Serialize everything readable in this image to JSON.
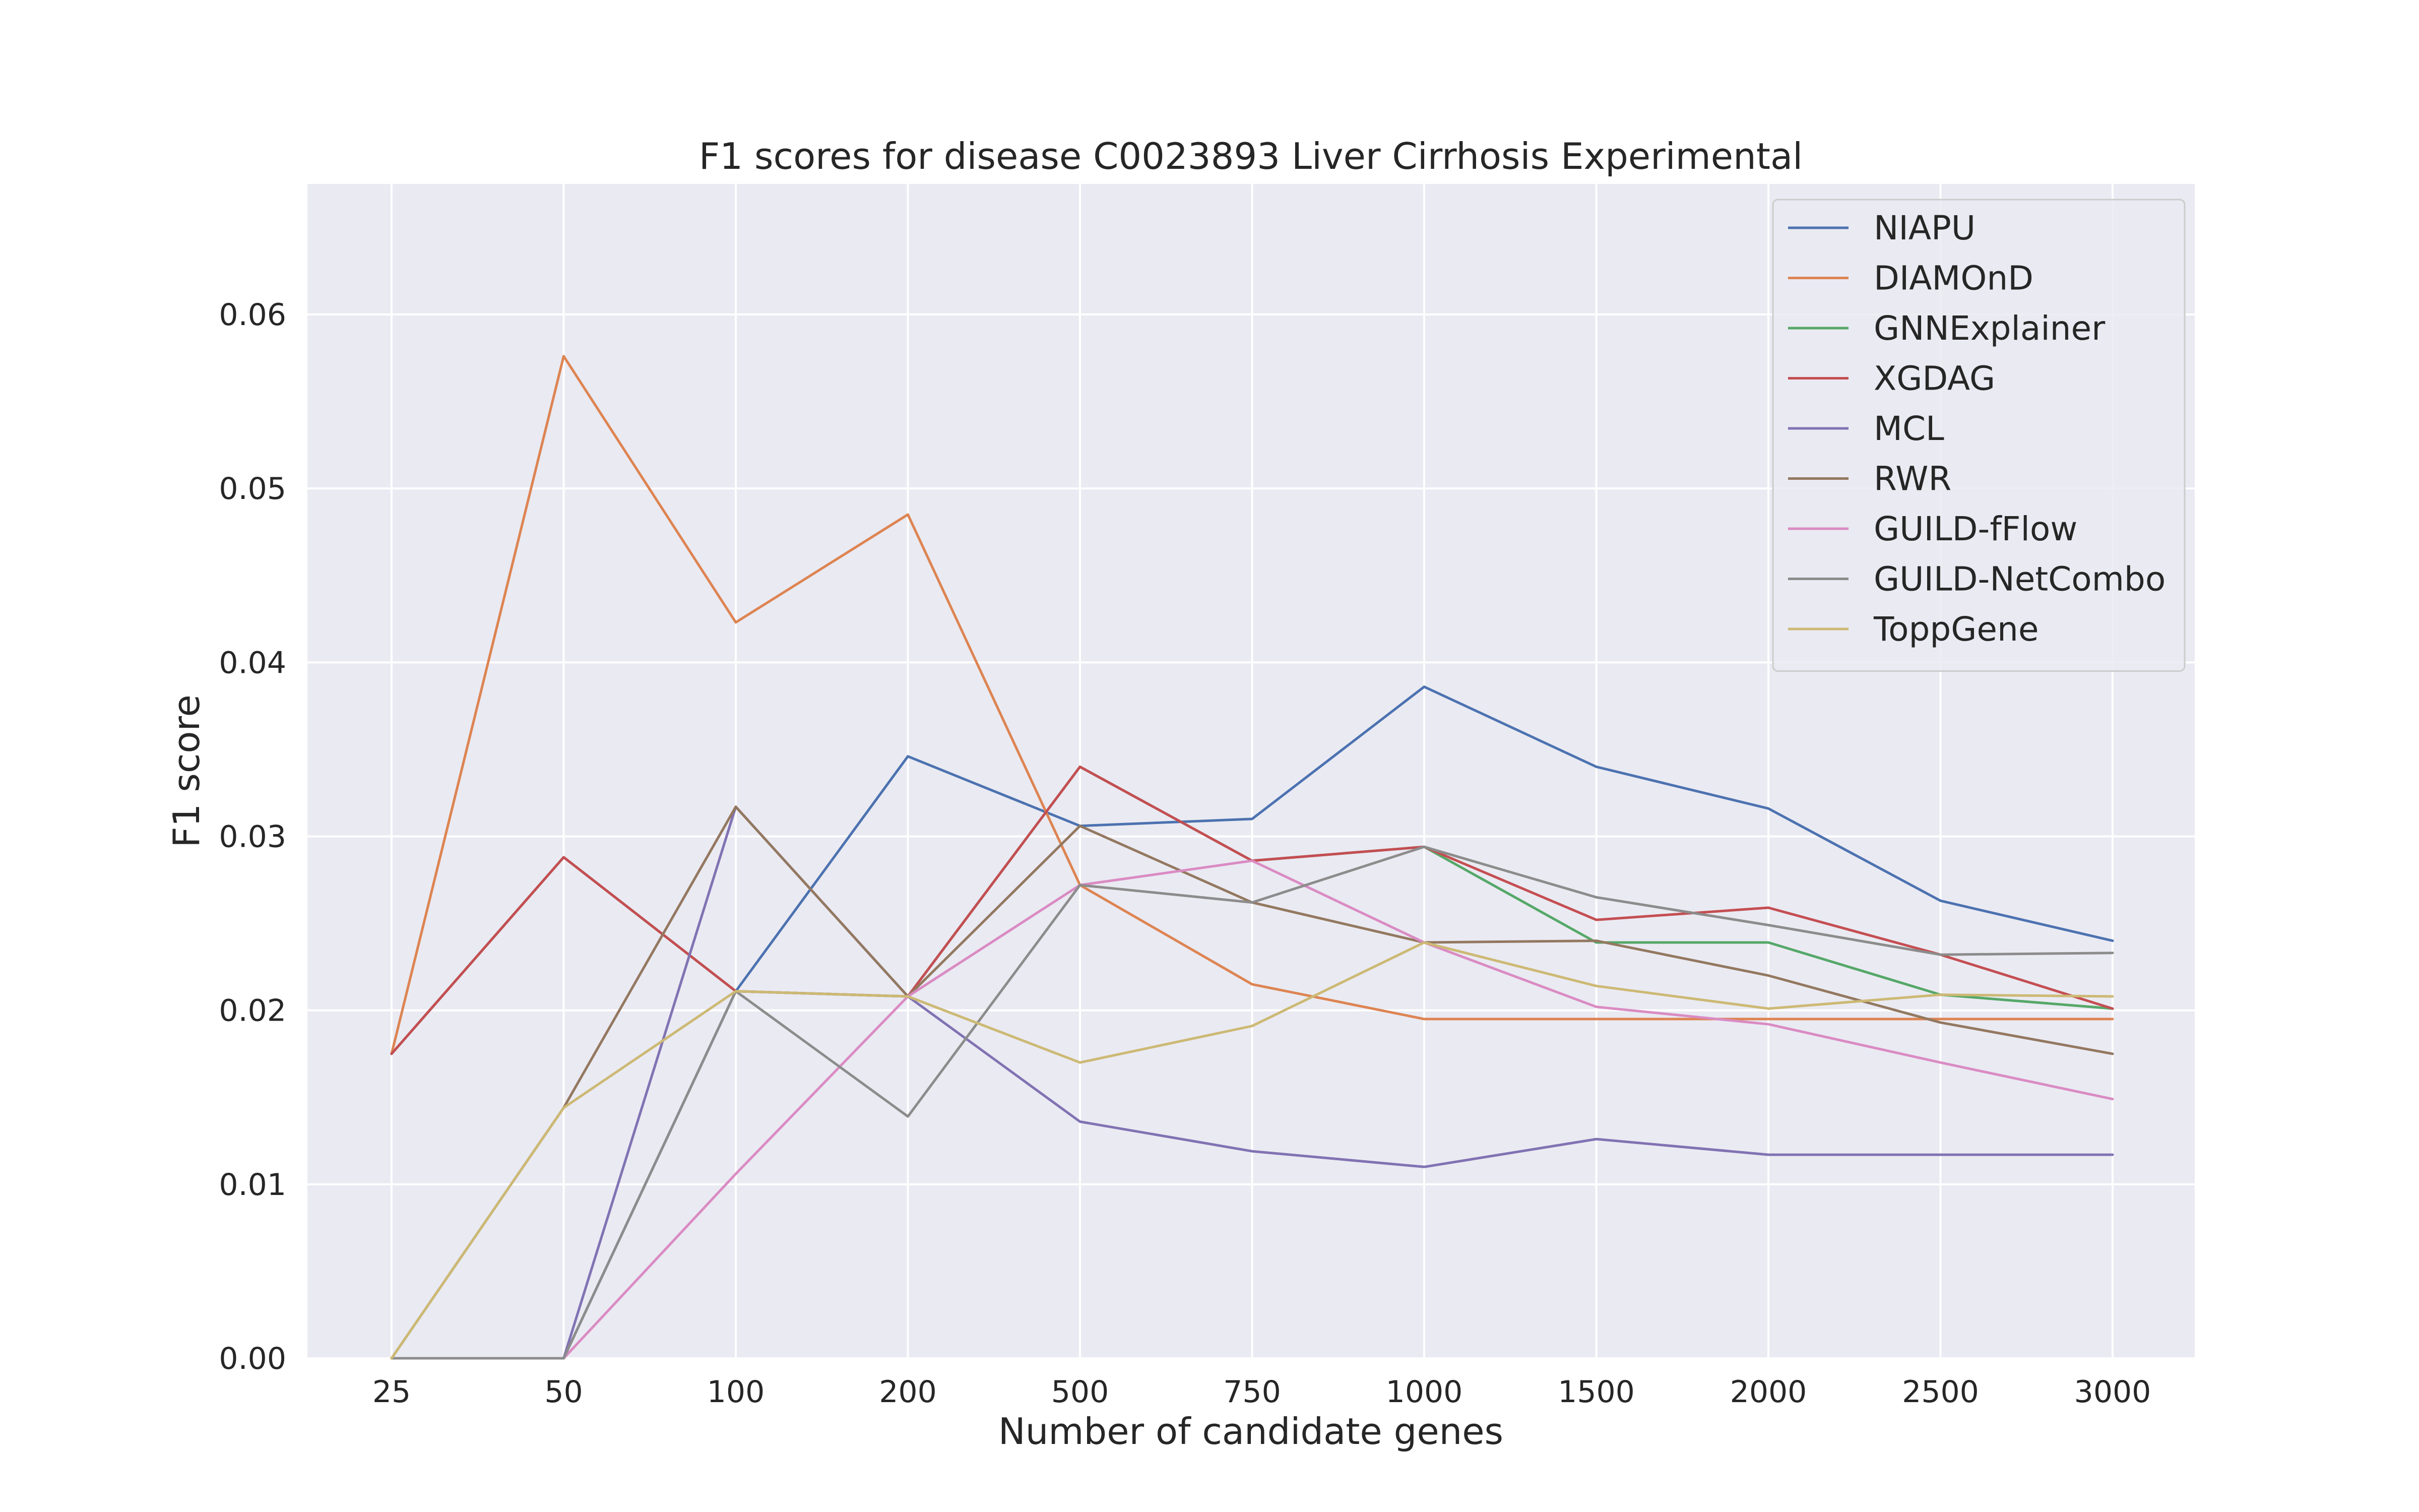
{
  "chart_data": {
    "type": "line",
    "title": "F1 scores for disease C0023893 Liver Cirrhosis Experimental",
    "xlabel": "Number of candidate genes",
    "ylabel": "F1 score",
    "categories": [
      "25",
      "50",
      "100",
      "200",
      "500",
      "750",
      "1000",
      "1500",
      "2000",
      "2500",
      "3000"
    ],
    "ylim": [
      0,
      0.0675
    ],
    "yticks": [
      "0.00",
      "0.01",
      "0.02",
      "0.03",
      "0.04",
      "0.05",
      "0.06"
    ],
    "grid": true,
    "legend_position": "top-right",
    "series": [
      {
        "name": "NIAPU",
        "color": "#4c72b0",
        "values": [
          0,
          0,
          0.0211,
          0.0346,
          0.0306,
          0.031,
          0.0386,
          0.034,
          0.0316,
          0.0263,
          0.024
        ]
      },
      {
        "name": "DIAMOnD",
        "color": "#dd8452",
        "values": [
          0.0175,
          0.0576,
          0.0423,
          0.0485,
          0.0272,
          0.0215,
          0.0195,
          0.0195,
          0.0195,
          0.0195,
          0.0195
        ]
      },
      {
        "name": "GNNExplainer",
        "color": "#55a868",
        "values": [
          0.0175,
          0.0288,
          0.0211,
          0.0208,
          0.034,
          0.0286,
          0.0294,
          0.0239,
          0.0239,
          0.0209,
          0.0201
        ]
      },
      {
        "name": "XGDAG",
        "color": "#c44e52",
        "values": [
          0.0175,
          0.0288,
          0.0211,
          0.0208,
          0.034,
          0.0286,
          0.0294,
          0.0252,
          0.0259,
          0.0232,
          0.0201
        ]
      },
      {
        "name": "MCL",
        "color": "#8172b3",
        "values": [
          0,
          0,
          0.0317,
          0.0208,
          0.0136,
          0.0119,
          0.011,
          0.0126,
          0.0117,
          0.0117,
          0.0117
        ]
      },
      {
        "name": "RWR",
        "color": "#937860",
        "values": [
          0,
          0.0144,
          0.0317,
          0.0208,
          0.0306,
          0.0262,
          0.0239,
          0.024,
          0.022,
          0.0193,
          0.0175
        ]
      },
      {
        "name": "GUILD-fFlow",
        "color": "#da8bc3",
        "values": [
          0,
          0,
          0.0106,
          0.0208,
          0.0272,
          0.0286,
          0.0239,
          0.0202,
          0.0192,
          0.017,
          0.0149
        ]
      },
      {
        "name": "GUILD-NetCombo",
        "color": "#8c8c8c",
        "values": [
          0,
          0,
          0.0211,
          0.0139,
          0.0272,
          0.0262,
          0.0294,
          0.0265,
          0.0249,
          0.0232,
          0.0233
        ]
      },
      {
        "name": "ToppGene",
        "color": "#ccb974",
        "values": [
          0,
          0.0144,
          0.0211,
          0.0208,
          0.017,
          0.0191,
          0.0239,
          0.0214,
          0.0201,
          0.0209,
          0.0208
        ]
      }
    ]
  }
}
